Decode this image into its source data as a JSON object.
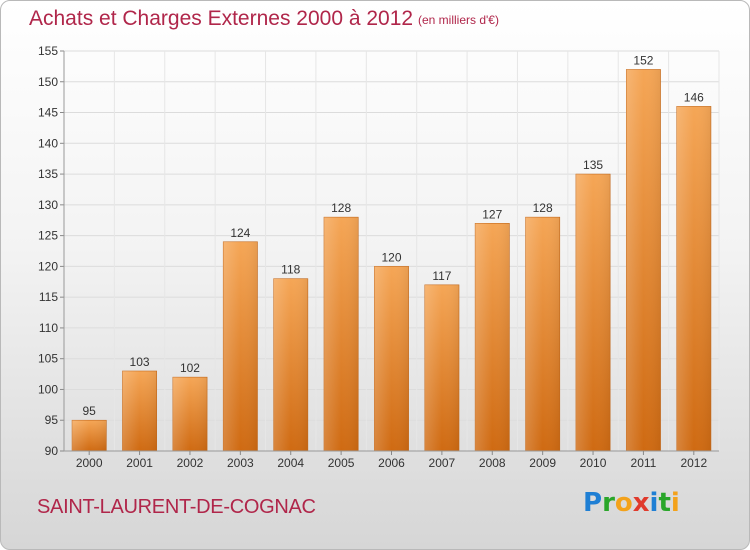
{
  "header": {
    "title": "Achats et Charges Externes 2000 à 2012",
    "subtitle": "(en milliers d'€)"
  },
  "footer": {
    "commune": "SAINT-LAURENT-DE-COGNAC",
    "logo_text": "Proxiti"
  },
  "colors": {
    "title": "#b0264a",
    "bar_top": "#f5a656",
    "bar_bottom": "#cf6a12",
    "axis_text": "#333333"
  },
  "chart_data": {
    "type": "bar",
    "title": "Achats et Charges Externes 2000 à 2012",
    "subtitle": "(en milliers d'€)",
    "xlabel": "",
    "ylabel": "",
    "categories": [
      "2000",
      "2001",
      "2002",
      "2003",
      "2004",
      "2005",
      "2006",
      "2007",
      "2008",
      "2009",
      "2010",
      "2011",
      "2012"
    ],
    "values": [
      95,
      103,
      102,
      124,
      118,
      128,
      120,
      117,
      127,
      128,
      135,
      152,
      146
    ],
    "ylim": [
      90,
      155
    ],
    "yticks": [
      90,
      95,
      100,
      105,
      110,
      115,
      120,
      125,
      130,
      135,
      140,
      145,
      150,
      155
    ],
    "grid": true,
    "legend": "none"
  }
}
